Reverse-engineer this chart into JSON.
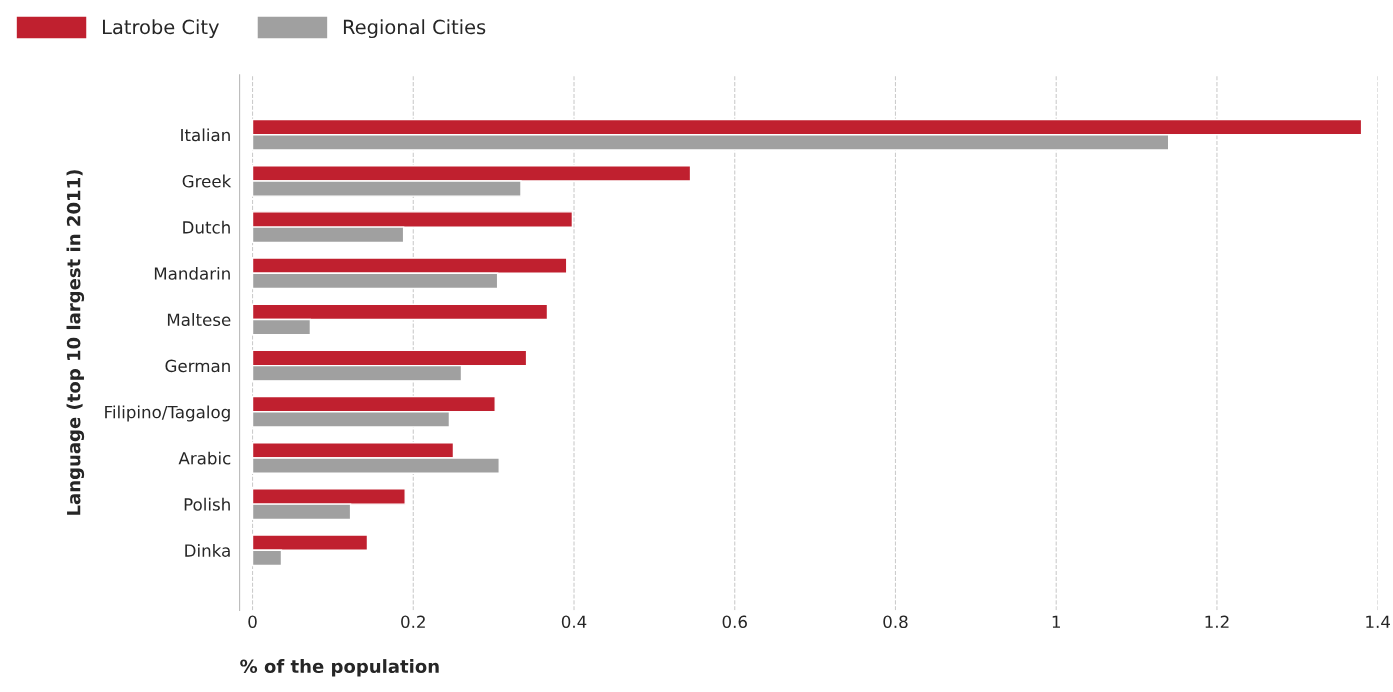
{
  "chart_data": {
    "type": "bar",
    "orientation": "horizontal",
    "xlabel": "% of the population",
    "ylabel": "Language (top 10 largest in 2011)",
    "categories": [
      "Italian",
      "Greek",
      "Dutch",
      "Mandarin",
      "Maltese",
      "German",
      "Filipino/Tagalog",
      "Arabic",
      "Polish",
      "Dinka"
    ],
    "series": [
      {
        "name": "Latrobe City",
        "color": "#c0202f",
        "values": [
          1.38,
          0.545,
          0.398,
          0.391,
          0.367,
          0.341,
          0.302,
          0.25,
          0.19,
          0.143
        ]
      },
      {
        "name": "Regional Cities",
        "color": "#a0a0a0",
        "values": [
          1.14,
          0.334,
          0.188,
          0.305,
          0.072,
          0.26,
          0.245,
          0.307,
          0.122,
          0.036
        ]
      }
    ],
    "xlim": [
      0,
      1.4
    ],
    "xticks": [
      0,
      0.2,
      0.4,
      0.6,
      0.8,
      1,
      1.2,
      1.4
    ],
    "grid": "x",
    "legend": "top left"
  }
}
